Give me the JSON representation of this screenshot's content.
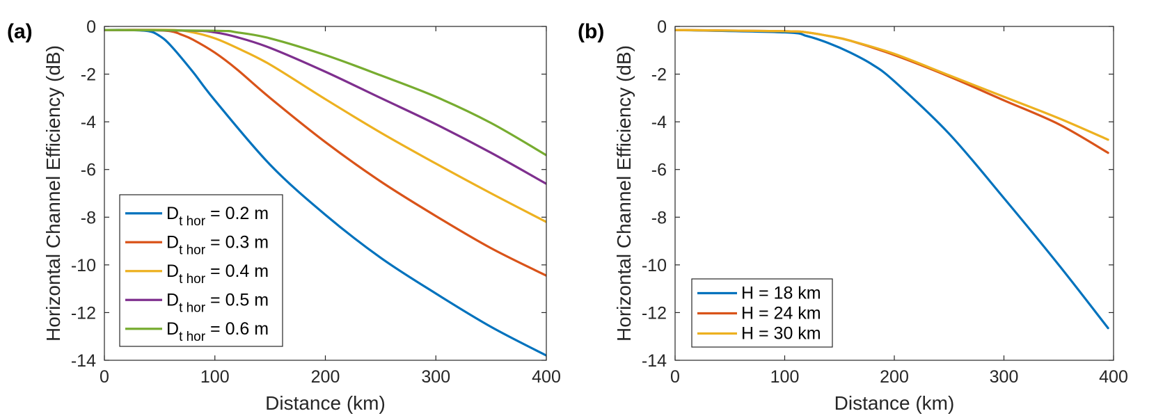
{
  "chart_data": [
    {
      "panel": "(a)",
      "type": "line",
      "xlabel": "Distance (km)",
      "ylabel": "Horizontal Channel Efficiency (dB)",
      "xlim": [
        0,
        400
      ],
      "ylim": [
        -14,
        0
      ],
      "xticks": [
        0,
        100,
        200,
        300,
        400
      ],
      "yticks": [
        0,
        -2,
        -4,
        -6,
        -8,
        -10,
        -12,
        -14
      ],
      "legend": "bottom-left",
      "series": [
        {
          "name": "D_t hor = 0.2 m",
          "label_main": "D",
          "label_sub": "t hor",
          "label_rest": " = 0.2 m",
          "color": "#0072BD",
          "x": [
            0,
            20,
            40,
            50,
            60,
            80,
            100,
            150,
            200,
            250,
            300,
            350,
            400
          ],
          "y": [
            -0.15,
            -0.15,
            -0.2,
            -0.4,
            -0.8,
            -1.9,
            -3.1,
            -5.8,
            -7.9,
            -9.7,
            -11.2,
            -12.6,
            -13.8
          ]
        },
        {
          "name": "D_t hor = 0.3 m",
          "label_main": "D",
          "label_sub": "t hor",
          "label_rest": " = 0.3 m",
          "color": "#D95319",
          "x": [
            0,
            40,
            60,
            70,
            80,
            100,
            120,
            150,
            200,
            250,
            300,
            350,
            400
          ],
          "y": [
            -0.15,
            -0.15,
            -0.2,
            -0.35,
            -0.55,
            -1.1,
            -1.8,
            -3.0,
            -4.85,
            -6.5,
            -7.95,
            -9.3,
            -10.45
          ]
        },
        {
          "name": "D_t hor = 0.4 m",
          "label_main": "D",
          "label_sub": "t hor",
          "label_rest": " = 0.4 m",
          "color": "#EDB120",
          "x": [
            0,
            60,
            80,
            100,
            120,
            150,
            200,
            250,
            300,
            350,
            400
          ],
          "y": [
            -0.15,
            -0.15,
            -0.25,
            -0.5,
            -0.9,
            -1.6,
            -3.05,
            -4.45,
            -5.75,
            -7.0,
            -8.2
          ]
        },
        {
          "name": "D_t hor = 0.5 m",
          "label_main": "D",
          "label_sub": "t hor",
          "label_rest": " = 0.5 m",
          "color": "#7E2F8E",
          "x": [
            0,
            80,
            100,
            120,
            150,
            200,
            250,
            300,
            350,
            400
          ],
          "y": [
            -0.15,
            -0.18,
            -0.25,
            -0.45,
            -0.9,
            -1.9,
            -3.0,
            -4.1,
            -5.3,
            -6.6
          ]
        },
        {
          "name": "D_t hor = 0.6 m",
          "label_main": "D",
          "label_sub": "t hor",
          "label_rest": " = 0.6 m",
          "color": "#77AC30",
          "x": [
            0,
            100,
            120,
            150,
            200,
            250,
            300,
            350,
            400
          ],
          "y": [
            -0.15,
            -0.18,
            -0.25,
            -0.5,
            -1.2,
            -2.05,
            -2.95,
            -4.05,
            -5.4
          ]
        }
      ]
    },
    {
      "panel": "(b)",
      "type": "line",
      "xlabel": "Distance (km)",
      "ylabel": "Horizontal Channel Efficiency (dB)",
      "xlim": [
        0,
        400
      ],
      "ylim": [
        -14,
        0
      ],
      "xticks": [
        0,
        100,
        200,
        300,
        400
      ],
      "yticks": [
        0,
        -2,
        -4,
        -6,
        -8,
        -10,
        -12,
        -14
      ],
      "legend": "bottom-left",
      "series": [
        {
          "name": "H = 18 km",
          "label_main": "H = 18 km",
          "label_sub": "",
          "label_rest": "",
          "color": "#0072BD",
          "x": [
            0,
            100,
            120,
            140,
            160,
            180,
            200,
            250,
            300,
            350,
            395
          ],
          "y": [
            -0.15,
            -0.25,
            -0.4,
            -0.7,
            -1.1,
            -1.6,
            -2.3,
            -4.5,
            -7.2,
            -10.0,
            -12.65
          ]
        },
        {
          "name": "H = 24 km",
          "label_main": "H = 24 km",
          "label_sub": "",
          "label_rest": "",
          "color": "#D95319",
          "x": [
            0,
            100,
            120,
            140,
            160,
            200,
            250,
            300,
            350,
            395
          ],
          "y": [
            -0.15,
            -0.2,
            -0.25,
            -0.4,
            -0.6,
            -1.2,
            -2.1,
            -3.1,
            -4.1,
            -5.3
          ]
        },
        {
          "name": "H = 30 km",
          "label_main": "H = 30 km",
          "label_sub": "",
          "label_rest": "",
          "color": "#EDB120",
          "x": [
            0,
            100,
            120,
            140,
            160,
            200,
            250,
            300,
            350,
            395
          ],
          "y": [
            -0.15,
            -0.2,
            -0.25,
            -0.4,
            -0.6,
            -1.15,
            -2.05,
            -2.95,
            -3.85,
            -4.75
          ]
        }
      ]
    }
  ]
}
